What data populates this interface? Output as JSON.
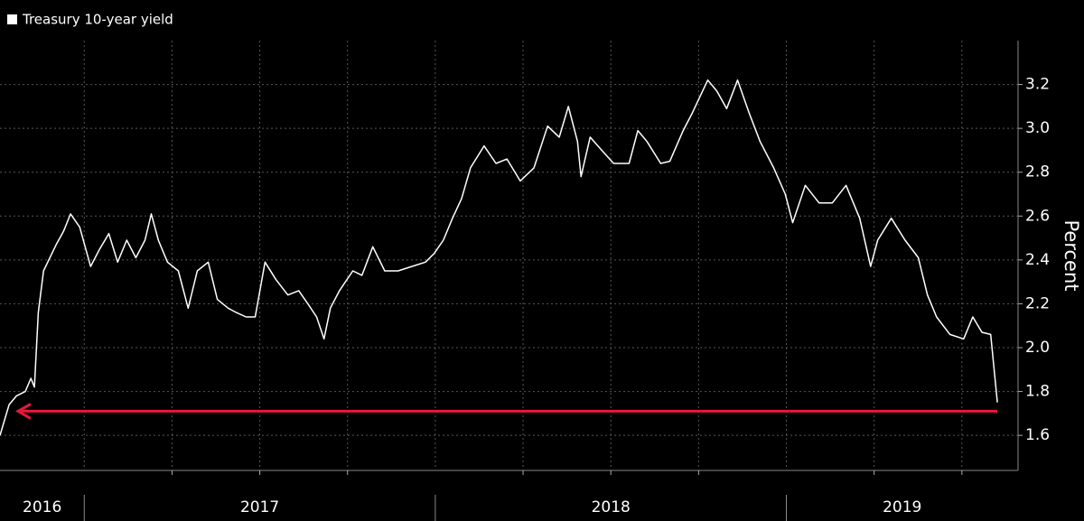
{
  "chart_data": {
    "type": "line",
    "series": [
      {
        "name": "Treasury 10-year yield",
        "color": "#ffffff",
        "x": [
          2016.76,
          2016.786,
          2016.807,
          2016.832,
          2016.848,
          2016.858,
          2016.869,
          2016.884,
          2016.902,
          2016.92,
          2016.941,
          2016.961,
          2016.987,
          2017.018,
          2017.044,
          2017.07,
          2017.095,
          2017.121,
          2017.147,
          2017.173,
          2017.191,
          2017.211,
          2017.237,
          2017.268,
          2017.296,
          2017.322,
          2017.353,
          2017.379,
          2017.41,
          2017.433,
          2017.461,
          2017.487,
          2017.515,
          2017.546,
          2017.58,
          2017.611,
          2017.637,
          2017.662,
          2017.683,
          2017.701,
          2017.727,
          2017.765,
          2017.791,
          2017.822,
          2017.856,
          2017.894,
          2017.933,
          2017.972,
          2017.997,
          2018.023,
          2018.049,
          2018.075,
          2018.1,
          2018.139,
          2018.173,
          2018.204,
          2018.242,
          2018.281,
          2018.32,
          2018.353,
          2018.379,
          2018.405,
          2018.415,
          2018.441,
          2018.474,
          2018.508,
          2018.552,
          2018.577,
          2018.603,
          2018.642,
          2018.668,
          2018.706,
          2018.732,
          2018.776,
          2018.802,
          2018.83,
          2018.861,
          2018.894,
          2018.925,
          2018.964,
          2018.997,
          2019.018,
          2019.054,
          2019.093,
          2019.131,
          2019.17,
          2019.209,
          2019.24,
          2019.26,
          2019.299,
          2019.338,
          2019.376,
          2019.402,
          2019.428,
          2019.466,
          2019.505,
          2019.531,
          2019.557,
          2019.582,
          2019.595,
          2019.601
        ],
        "values": [
          1.6,
          1.74,
          1.78,
          1.8,
          1.86,
          1.82,
          2.16,
          2.35,
          2.41,
          2.47,
          2.53,
          2.61,
          2.55,
          2.37,
          2.45,
          2.52,
          2.39,
          2.49,
          2.41,
          2.49,
          2.61,
          2.49,
          2.39,
          2.35,
          2.18,
          2.35,
          2.39,
          2.22,
          2.18,
          2.16,
          2.14,
          2.14,
          2.39,
          2.31,
          2.24,
          2.26,
          2.2,
          2.14,
          2.04,
          2.18,
          2.26,
          2.35,
          2.33,
          2.46,
          2.35,
          2.35,
          2.37,
          2.39,
          2.43,
          2.49,
          2.59,
          2.68,
          2.82,
          2.92,
          2.84,
          2.86,
          2.76,
          2.82,
          3.01,
          2.96,
          3.1,
          2.94,
          2.78,
          2.96,
          2.9,
          2.84,
          2.84,
          2.99,
          2.94,
          2.84,
          2.85,
          2.99,
          3.07,
          3.22,
          3.17,
          3.09,
          3.22,
          3.07,
          2.94,
          2.82,
          2.7,
          2.57,
          2.74,
          2.66,
          2.66,
          2.74,
          2.59,
          2.37,
          2.49,
          2.59,
          2.49,
          2.41,
          2.24,
          2.14,
          2.06,
          2.04,
          2.14,
          2.07,
          2.06,
          1.85,
          1.75
        ]
      }
    ],
    "reference_line": {
      "value": 1.71,
      "color": "#e8173d"
    },
    "xlim": [
      2016.76,
      2019.66
    ],
    "xticks": [
      2017,
      2018,
      2019
    ],
    "xminorticks": [
      2017.25,
      2017.5,
      2017.75,
      2018.25,
      2018.5,
      2018.75,
      2019.25,
      2019.5
    ],
    "year_labels": [
      "2016",
      "2017",
      "2018",
      "2019"
    ],
    "ylim": [
      1.44,
      3.4
    ],
    "yticks": [
      1.6,
      1.8,
      {
        "value": 2,
        "label": "2.0"
      },
      2.2,
      2.4,
      2.6,
      2.8,
      {
        "value": 3,
        "label": "3.0"
      },
      3.2
    ],
    "ylabel": "Percent",
    "grid": true
  }
}
